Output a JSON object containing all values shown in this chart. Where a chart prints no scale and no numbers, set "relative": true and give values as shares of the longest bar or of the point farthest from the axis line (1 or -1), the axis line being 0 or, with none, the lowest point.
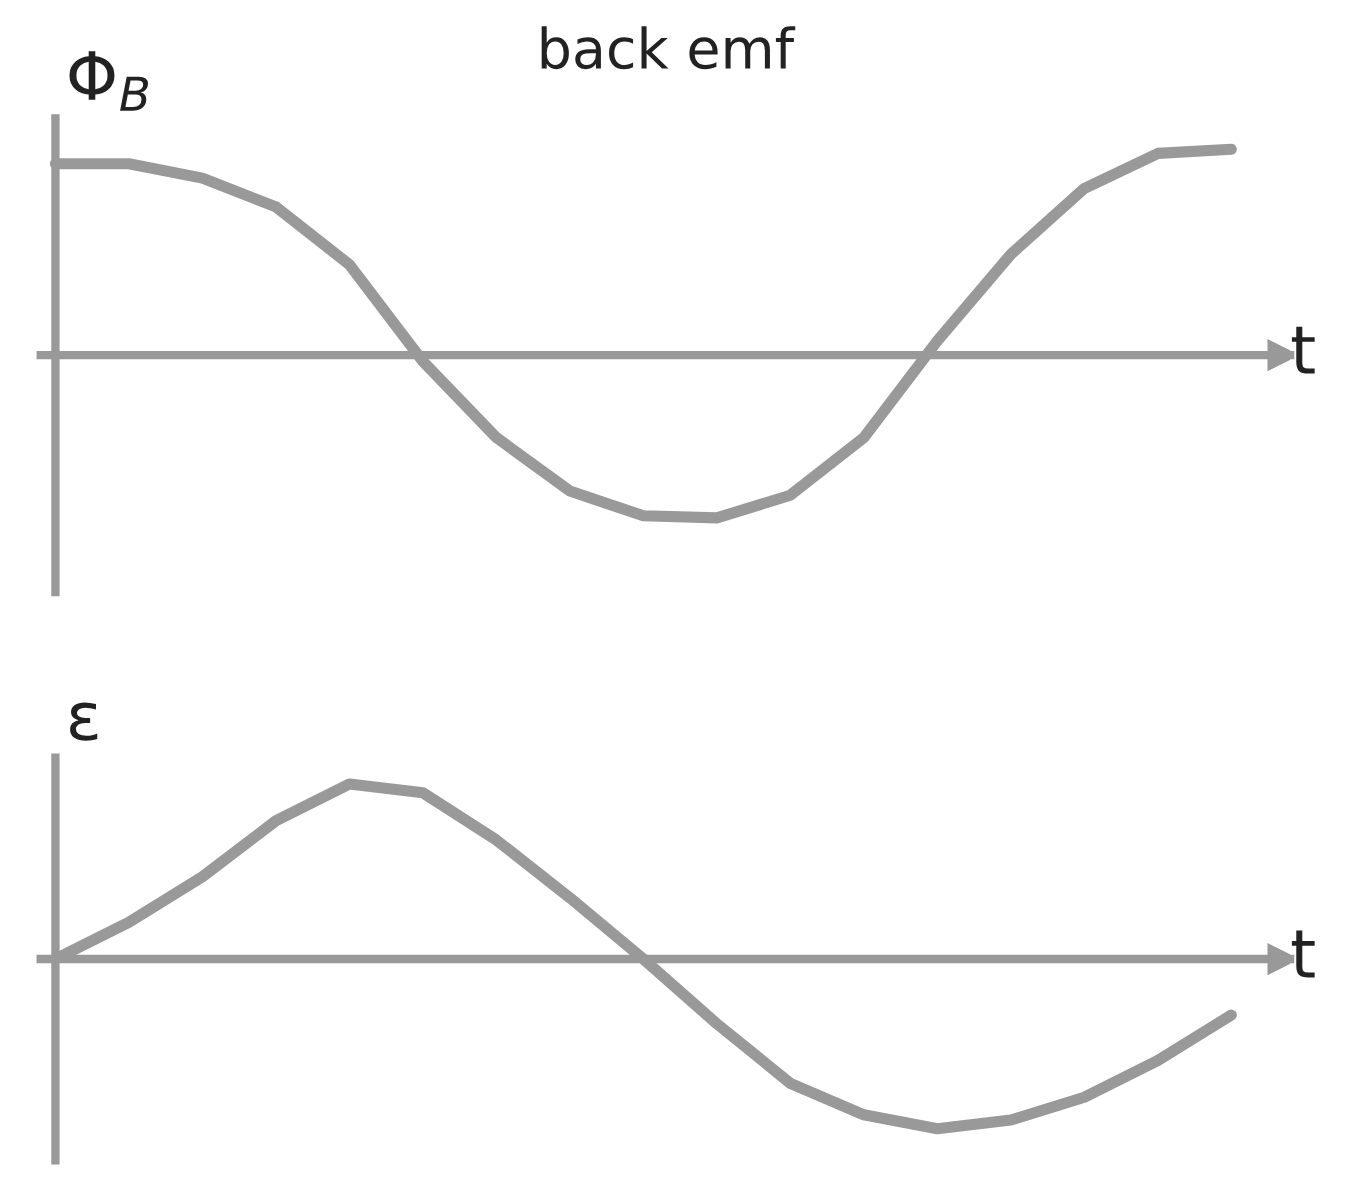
{
  "chart_data": [
    {
      "type": "line",
      "title": "back emf",
      "ylabel": "Φ$_{B}$",
      "xlabel": "t",
      "relative": true,
      "categories": [
        null,
        null,
        null,
        null,
        null,
        null,
        null,
        null,
        null,
        null,
        null,
        null,
        null,
        null,
        null,
        null,
        null
      ],
      "series": [
        {
          "color": "#999999",
          "values": [
            0.93,
            0.93,
            0.86,
            0.72,
            0.44,
            -0.03,
            -0.4,
            -0.66,
            -0.78,
            -0.79,
            -0.68,
            -0.4,
            0.07,
            0.49,
            0.81,
            0.98,
            1
          ]
        }
      ]
    },
    {
      "type": "line",
      "ylabel": "ε",
      "xlabel": "t",
      "relative": true,
      "categories": [
        null,
        null,
        null,
        null,
        null,
        null,
        null,
        null,
        null,
        null,
        null,
        null,
        null,
        null,
        null,
        null,
        null
      ],
      "series": [
        {
          "color": "#999999",
          "values": [
            0,
            0.21,
            0.47,
            0.79,
            1,
            0.95,
            0.68,
            0.35,
            0,
            -0.37,
            -0.71,
            -0.89,
            -0.97,
            -0.92,
            -0.79,
            -0.58,
            -0.32
          ]
        }
      ]
    }
  ]
}
